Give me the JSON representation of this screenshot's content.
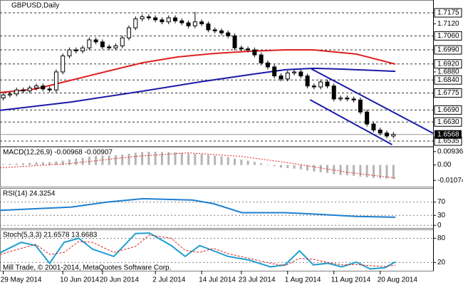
{
  "watermark": "Mill Trade, © 2001-2014, MetaQuotes Software Corp.",
  "chart_data": [
    {
      "type": "candlestick",
      "title": "GBPUSD,Daily",
      "xlim": [
        -0.5,
        65
      ],
      "xticks": [
        {
          "value": 0,
          "label": "29 May 2014"
        },
        {
          "value": 9,
          "label": "10 Jun 2014"
        },
        {
          "value": 15,
          "label": "20 Jun 2014"
        },
        {
          "value": 23,
          "label": "2 Jul 2014"
        },
        {
          "value": 30,
          "label": "14 Jul 2014"
        },
        {
          "value": 36,
          "label": "23 Jul 2014"
        },
        {
          "value": 43,
          "label": "1 Aug 2014"
        },
        {
          "value": 50,
          "label": "11 Aug 2014"
        },
        {
          "value": 57,
          "label": "20 Aug 2014"
        }
      ],
      "ylim": [
        1.651,
        1.7239
      ],
      "yticks": [
        {
          "value": 1.712,
          "label": "1.7120"
        },
        {
          "value": 1.688,
          "label": "1.6880"
        }
      ],
      "levels": [
        1.7175,
        {
          "value": 1.706,
          "label": "1.7060"
        },
        {
          "value": 1.699,
          "label": "1.6990"
        },
        {
          "value": 1.692,
          "label": "1.6920"
        },
        {
          "value": 1.684,
          "label": "1.6840"
        },
        1.6775,
        {
          "value": 1.669,
          "label": "1.6690"
        },
        {
          "value": 1.663,
          "label": "1.6630"
        },
        1.6535
      ],
      "last_price": 1.6568,
      "up_color": "#ffffff",
      "down_color": "#000000",
      "open": [
        1.675,
        1.6765,
        1.677,
        1.679,
        1.6785,
        1.68,
        1.681,
        1.6795,
        1.679,
        1.688,
        1.696,
        1.699,
        1.6985,
        1.7,
        1.704,
        1.703,
        1.7005,
        1.7,
        1.701,
        1.705,
        1.71,
        1.7145,
        1.7155,
        1.715,
        1.714,
        1.713,
        1.715,
        1.7135,
        1.7125,
        1.711,
        1.713,
        1.712,
        1.709,
        1.7085,
        1.7075,
        1.706,
        1.7,
        1.6995,
        1.699,
        1.6965,
        1.6925,
        1.6905,
        1.686,
        1.6845,
        1.6875,
        1.688,
        1.686,
        1.681,
        1.6805,
        1.683,
        1.681,
        1.6745,
        1.675,
        1.6745,
        1.674,
        1.668,
        1.662,
        1.659,
        1.6575,
        1.656
      ],
      "high": [
        1.6777,
        1.6782,
        1.6802,
        1.6802,
        1.6812,
        1.6822,
        1.6822,
        1.6807,
        1.6892,
        1.6972,
        1.7002,
        1.7002,
        1.7012,
        1.7052,
        1.7052,
        1.7042,
        1.7017,
        1.7022,
        1.7062,
        1.7112,
        1.7157,
        1.7167,
        1.7167,
        1.7162,
        1.7152,
        1.7162,
        1.7162,
        1.7147,
        1.7137,
        1.718,
        1.7142,
        1.7132,
        1.7102,
        1.7097,
        1.7087,
        1.7072,
        1.7012,
        1.7007,
        1.7002,
        1.6977,
        1.6937,
        1.6917,
        1.6872,
        1.6887,
        1.6892,
        1.6892,
        1.6872,
        1.6822,
        1.6842,
        1.6842,
        1.6822,
        1.6762,
        1.6762,
        1.6757,
        1.6752,
        1.6692,
        1.6632,
        1.6602,
        1.6587,
        1.658
      ],
      "low": [
        1.6738,
        1.6753,
        1.6758,
        1.6773,
        1.6773,
        1.6788,
        1.6783,
        1.6778,
        1.6778,
        1.6868,
        1.6948,
        1.6973,
        1.6973,
        1.6988,
        1.7018,
        1.6993,
        1.6988,
        1.6988,
        1.6998,
        1.7038,
        1.7088,
        1.7133,
        1.7138,
        1.7128,
        1.7118,
        1.7118,
        1.7123,
        1.7113,
        1.7098,
        1.7098,
        1.7108,
        1.7078,
        1.7073,
        1.7063,
        1.7048,
        1.6988,
        1.6983,
        1.6978,
        1.6953,
        1.6913,
        1.6893,
        1.6848,
        1.6833,
        1.6833,
        1.6863,
        1.6848,
        1.6798,
        1.6793,
        1.6793,
        1.6798,
        1.6733,
        1.6733,
        1.6733,
        1.6728,
        1.6668,
        1.6608,
        1.6578,
        1.6563,
        1.6548,
        1.6548
      ],
      "close": [
        1.6765,
        1.677,
        1.679,
        1.6785,
        1.68,
        1.681,
        1.6795,
        1.679,
        1.688,
        1.696,
        1.699,
        1.6985,
        1.7,
        1.704,
        1.703,
        1.7005,
        1.7,
        1.701,
        1.705,
        1.71,
        1.7145,
        1.7155,
        1.715,
        1.714,
        1.713,
        1.715,
        1.7135,
        1.7125,
        1.711,
        1.713,
        1.712,
        1.709,
        1.7085,
        1.7075,
        1.706,
        1.7,
        1.6995,
        1.699,
        1.6965,
        1.6925,
        1.6905,
        1.686,
        1.6845,
        1.6875,
        1.688,
        1.686,
        1.681,
        1.6805,
        1.683,
        1.681,
        1.6745,
        1.675,
        1.6745,
        1.674,
        1.668,
        1.662,
        1.659,
        1.6575,
        1.656,
        1.6568
      ],
      "lines": [
        {
          "color": "#e02020",
          "x": [
            -0.5,
            4.9,
            9.2,
            15.7,
            21.1,
            26.4,
            31.8,
            37.2,
            42.6,
            46.9,
            53.4,
            59.3
          ],
          "values": [
            1.6777,
            1.6795,
            1.683,
            1.6883,
            1.6926,
            1.6955,
            1.6972,
            1.6983,
            1.699,
            1.699,
            1.6969,
            1.6919
          ]
        },
        {
          "color": "#1a1aa8",
          "x": [
            -0.5,
            10.3,
            21.1,
            29.7,
            37.2,
            42.6,
            46.9,
            51.2,
            59.3
          ],
          "values": [
            1.6688,
            1.673,
            1.6784,
            1.683,
            1.6866,
            1.6891,
            1.6898,
            1.6894,
            1.6883
          ]
        },
        {
          "color": "#1a1aa8",
          "x": [
            46.6,
            65
          ],
          "values": [
            1.6895,
            1.6574
          ]
        },
        {
          "color": "#1a1aa8",
          "x": [
            46.4,
            58.8
          ],
          "values": [
            1.6741,
            1.6517
          ]
        }
      ]
    },
    {
      "type": "histogram",
      "title": "MACD(12,26,9) -0.00968 -0.00907",
      "ylim": [
        -0.0151,
        0.0127
      ],
      "yticks": [
        0.00936,
        {
          "value": 0,
          "label": "0.00"
        },
        -0.01074
      ],
      "color": "#b4b4b4",
      "values": [
        0.0005,
        0.0008,
        0.001,
        0.0012,
        0.0015,
        0.0018,
        0.002,
        0.002,
        0.0025,
        0.003,
        0.0038,
        0.0045,
        0.005,
        0.0058,
        0.0063,
        0.0065,
        0.0066,
        0.0068,
        0.0072,
        0.0078,
        0.0085,
        0.009,
        0.0092,
        0.0092,
        0.009,
        0.009,
        0.0088,
        0.0085,
        0.008,
        0.0078,
        0.0075,
        0.007,
        0.0065,
        0.006,
        0.0055,
        0.0045,
        0.0038,
        0.003,
        0.0022,
        0.0012,
        0.0003,
        -0.0008,
        -0.0018,
        -0.0022,
        -0.0025,
        -0.003,
        -0.0038,
        -0.0045,
        -0.005,
        -0.0055,
        -0.0065,
        -0.007,
        -0.0072,
        -0.0075,
        -0.008,
        -0.0085,
        -0.009,
        -0.0093,
        -0.0095,
        -0.00968
      ],
      "signal": {
        "color": "#e02020",
        "x": [
          -0.5,
          10,
          20,
          28,
          36,
          44,
          52,
          59.3
        ],
        "values": [
          -0.002,
          0.001,
          0.006,
          0.0085,
          0.006,
          0.001,
          -0.005,
          -0.00907
        ]
      }
    },
    {
      "type": "line",
      "title": "RSI(14) 24.3254",
      "ylim": [
        -8,
        112
      ],
      "yticks": [
        70,
        30,
        0
      ],
      "grid": true,
      "series": [
        {
          "color": "#1e7fd0",
          "x": [
            -0.5,
            10.3,
            15.7,
            21.1,
            28.6,
            31.8,
            36.1,
            42.6,
            46.9,
            53.4,
            59.3
          ],
          "values": [
            45,
            55,
            70,
            80,
            76,
            65,
            38,
            38,
            34,
            27,
            24.3254
          ]
        }
      ]
    },
    {
      "type": "line",
      "title": "Stoch(5,3,3) 21.6578 13.6683",
      "ylim": [
        -0.5,
        102
      ],
      "yticks": [
        80,
        20
      ],
      "grid": true,
      "series": [
        {
          "color": "#1e9fd0",
          "dash": false,
          "x": [
            -0.5,
            2.7,
            4.9,
            7,
            9.2,
            11.4,
            13.5,
            16.7,
            20,
            22.1,
            25.4,
            27.5,
            29.7,
            31.8,
            34,
            37.2,
            40.4,
            42.6,
            44.8,
            46.9,
            49.1,
            51.2,
            53.4,
            55.5,
            57.7,
            59.3
          ],
          "values": [
            44,
            70,
            62,
            18,
            70,
            80,
            53,
            35,
            92,
            93,
            62,
            35,
            62,
            49,
            35,
            26,
            9,
            14,
            49,
            14,
            18,
            9,
            21,
            4,
            7,
            21.6578
          ]
        },
        {
          "color": "#e02020",
          "dash": true,
          "x": [
            -0.5,
            2.7,
            4.9,
            7,
            9.2,
            11.4,
            13.5,
            16.7,
            20,
            22.1,
            25.4,
            27.5,
            29.7,
            31.8,
            34,
            37.2,
            40.4,
            42.6,
            44.8,
            46.9,
            49.1,
            51.2,
            53.4,
            55.5,
            57.7,
            59.3
          ],
          "values": [
            40,
            55,
            65,
            40,
            45,
            72,
            70,
            45,
            60,
            88,
            80,
            50,
            45,
            55,
            42,
            30,
            18,
            12,
            30,
            28,
            20,
            14,
            15,
            12,
            10,
            13.6683
          ]
        }
      ]
    }
  ]
}
